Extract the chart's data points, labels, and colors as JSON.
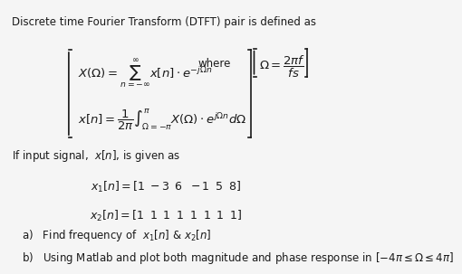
{
  "title_text": "Discrete time Fourier Transform (DTFT) pair is defined as",
  "eq1": "X(\\Omega)=\\sum_{n=-\\infty}^{\\infty} x[n]\\cdot e^{-j\\Omega n}\\quad where\\quad \\Omega=\\dfrac{2\\pi f}{fs}",
  "eq2": "x[n]=\\dfrac{1}{2\\pi}\\int_{\\Omega=-\\pi}^{\\pi} X(\\Omega)\\cdot e^{j\\Omega n}d\\Omega",
  "if_signal": "If input signal,  $x\\left[n\\right]$, is given as",
  "x1": "x_1\\left[n\\right]=\\left[1\\;-3\\;\\;6\\;\\;-1\\;\\;5\\;\\;8\\right]",
  "x2": "x_2\\left[n\\right]=\\left[1\\;\\;1\\;\\;1\\;\\;1\\;\\;1\\;\\;1\\;\\;1\\;\\;1\\right]",
  "part_a": "a)   Find frequency of  $x_1\\left[n\\right]$ & $x_2\\left[n\\right]$",
  "part_b": "b)   Using Matlab and plot both magnitude and phase response in $\\left[-4\\pi\\leq\\Omega\\leq4\\pi\\right]$",
  "bg_color": "#f5f5f5",
  "text_color": "#1a1a1a",
  "font_size": 8.5
}
